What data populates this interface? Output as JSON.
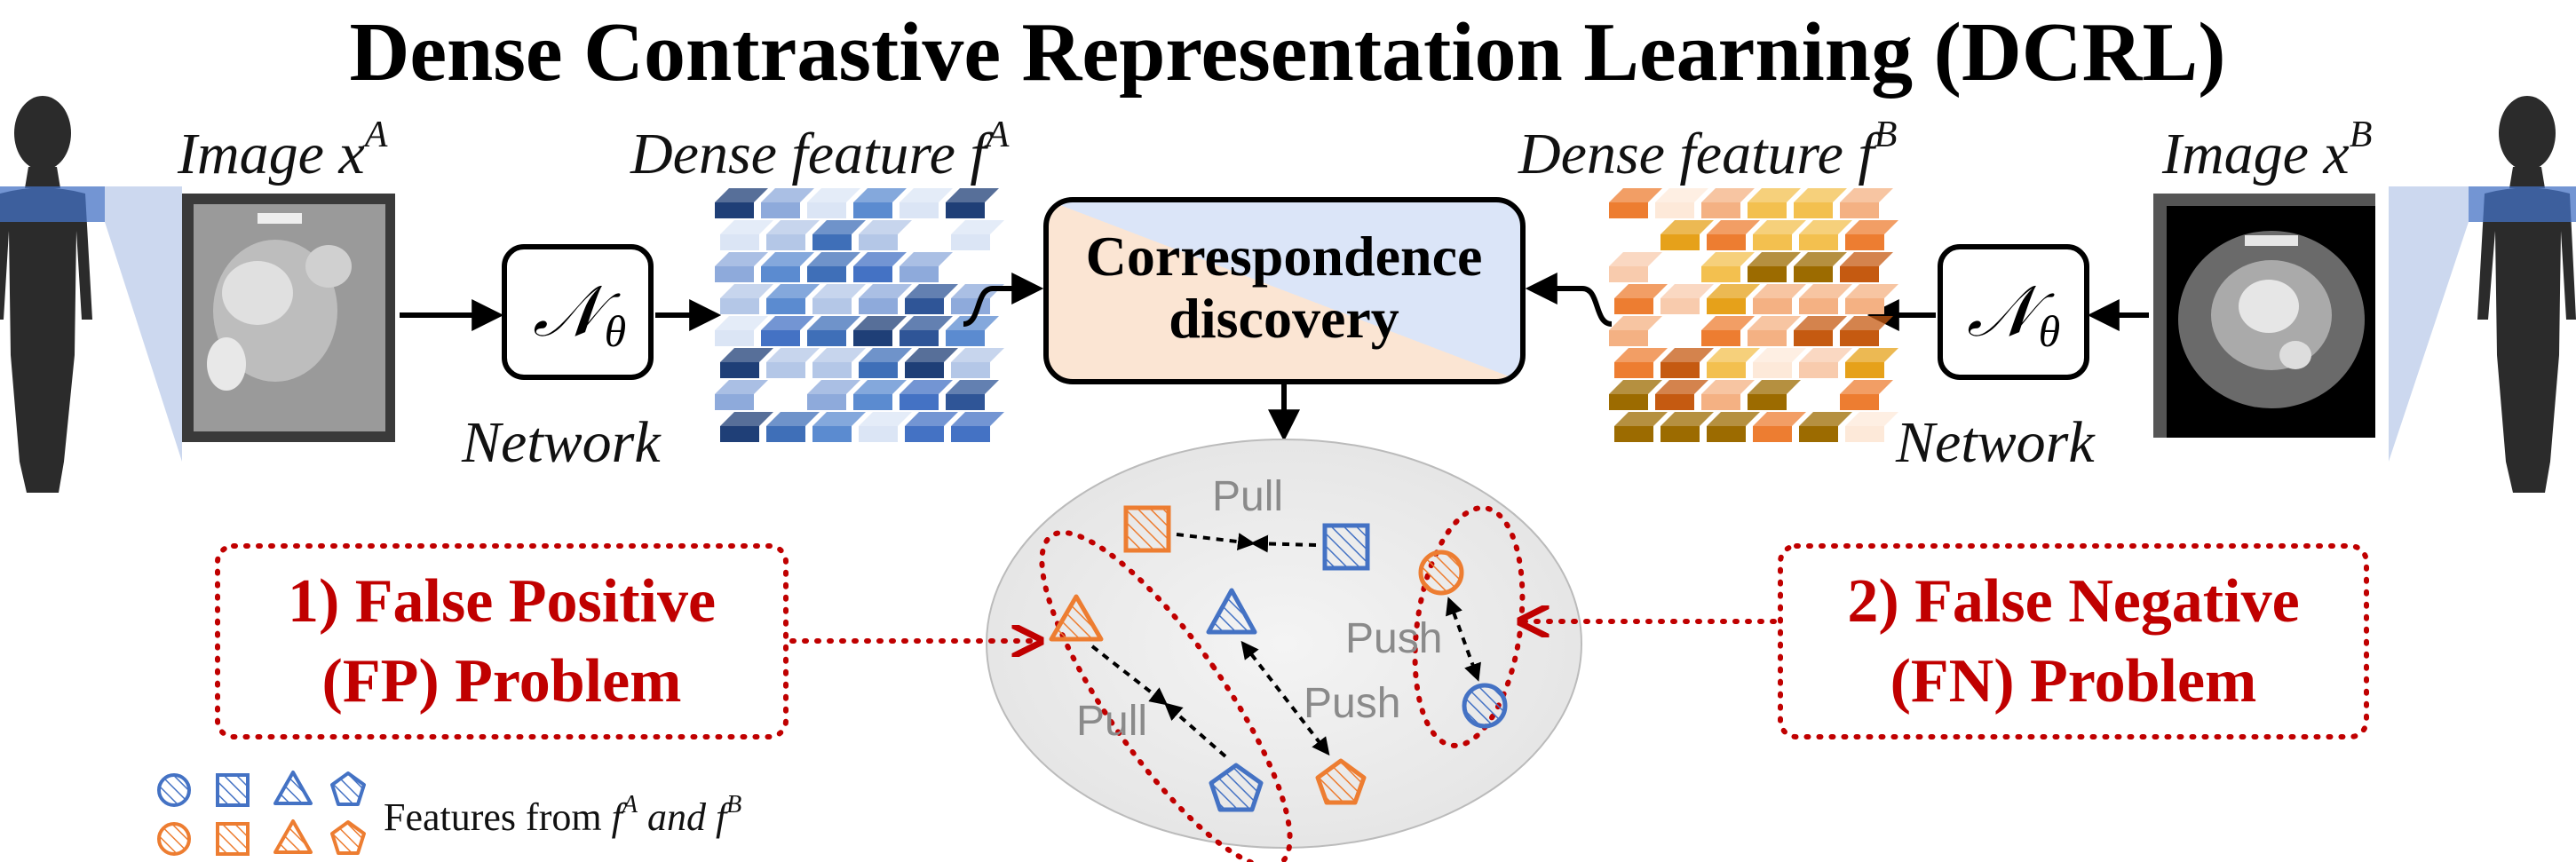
{
  "title": "Dense Contrastive Representation Learning (DCRL)",
  "left": {
    "image_label": "Image x",
    "image_sup": "A",
    "feature_label": "Dense feature f",
    "feature_sup": "A",
    "network_label": "Network",
    "network_symbol": "𝒩",
    "network_sub": "θ"
  },
  "right": {
    "image_label": "Image x",
    "image_sup": "B",
    "feature_label": "Dense feature f",
    "feature_sup": "B",
    "network_label": "Network",
    "network_symbol": "𝒩",
    "network_sub": "θ"
  },
  "center": {
    "line1": "Correspondence",
    "line2": "discovery"
  },
  "problems": {
    "fp_line1": "1) False Positive",
    "fp_line2": "(FP) Problem",
    "fn_line1": "2) False Negative",
    "fn_line2": "(FN) Problem"
  },
  "relations": {
    "pull_top": "Pull",
    "pull_bottom": "Pull",
    "push_right": "Push",
    "push_mid": "Push"
  },
  "legend": {
    "text": "Features from ",
    "fa": "f",
    "fa_sup": "A",
    "and": " and ",
    "fb": "f",
    "fb_sup": "B"
  },
  "colors": {
    "blue": "#4472c4",
    "orange": "#ed7d31",
    "red": "#c00000",
    "grey_text": "#8a8a8a"
  }
}
